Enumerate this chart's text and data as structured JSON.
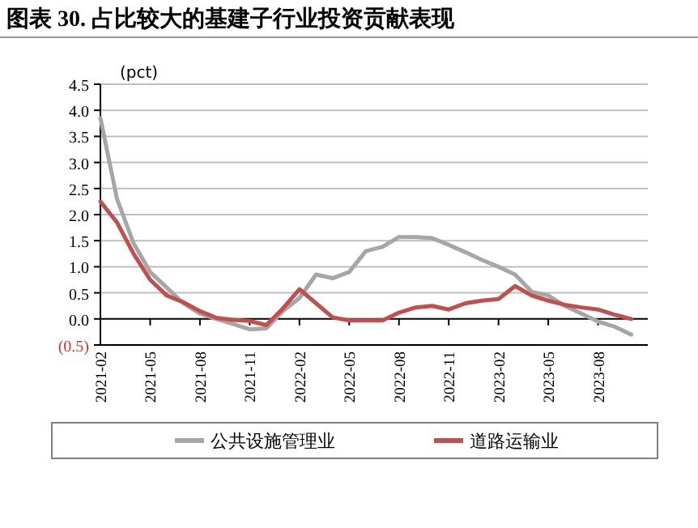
{
  "chart_data": {
    "type": "line",
    "title": "图表 30. 占比较大的基建子行业投资贡献表现",
    "ylabel": "(pct)",
    "categories": [
      "2021-02",
      null,
      null,
      "2021-05",
      null,
      null,
      "2021-08",
      null,
      null,
      "2021-11",
      null,
      null,
      "2022-02",
      null,
      null,
      "2022-05",
      null,
      null,
      "2022-08",
      null,
      null,
      "2022-11",
      null,
      null,
      "2023-02",
      null,
      null,
      "2023-05",
      null,
      null,
      "2023-08",
      null,
      null
    ],
    "series": [
      {
        "name": "公共设施管理业",
        "color": "#a6a6a6",
        "values": [
          3.85,
          2.3,
          1.45,
          0.9,
          0.6,
          0.3,
          0.1,
          0.0,
          -0.1,
          -0.2,
          -0.18,
          0.15,
          0.4,
          0.85,
          0.78,
          0.9,
          1.3,
          1.38,
          1.57,
          1.57,
          1.55,
          1.42,
          1.28,
          1.13,
          1.0,
          0.85,
          0.52,
          0.45,
          0.25,
          0.1,
          -0.05,
          -0.15,
          -0.3
        ]
      },
      {
        "name": "道路运输业",
        "color": "#c0504d",
        "values": [
          2.25,
          1.85,
          1.25,
          0.75,
          0.45,
          0.32,
          0.15,
          0.02,
          -0.02,
          -0.04,
          -0.12,
          0.2,
          0.57,
          0.3,
          0.03,
          -0.03,
          -0.03,
          -0.03,
          0.12,
          0.22,
          0.25,
          0.18,
          0.3,
          0.35,
          0.38,
          0.63,
          0.45,
          0.35,
          0.27,
          0.22,
          0.18,
          0.08,
          0.0
        ]
      }
    ],
    "ylim": [
      -0.5,
      4.5
    ],
    "yticks": [
      {
        "value": -0.5,
        "label": "(0.5)"
      },
      {
        "value": 0,
        "label": "0.0"
      },
      0.5,
      {
        "value": 1,
        "label": "1.0"
      },
      1.5,
      {
        "value": 2,
        "label": "2.0"
      },
      2.5,
      {
        "value": 3,
        "label": "3.0"
      },
      3.5,
      {
        "value": 4,
        "label": "4.0"
      },
      4.5
    ],
    "grid": "y",
    "legend": "bottom"
  }
}
